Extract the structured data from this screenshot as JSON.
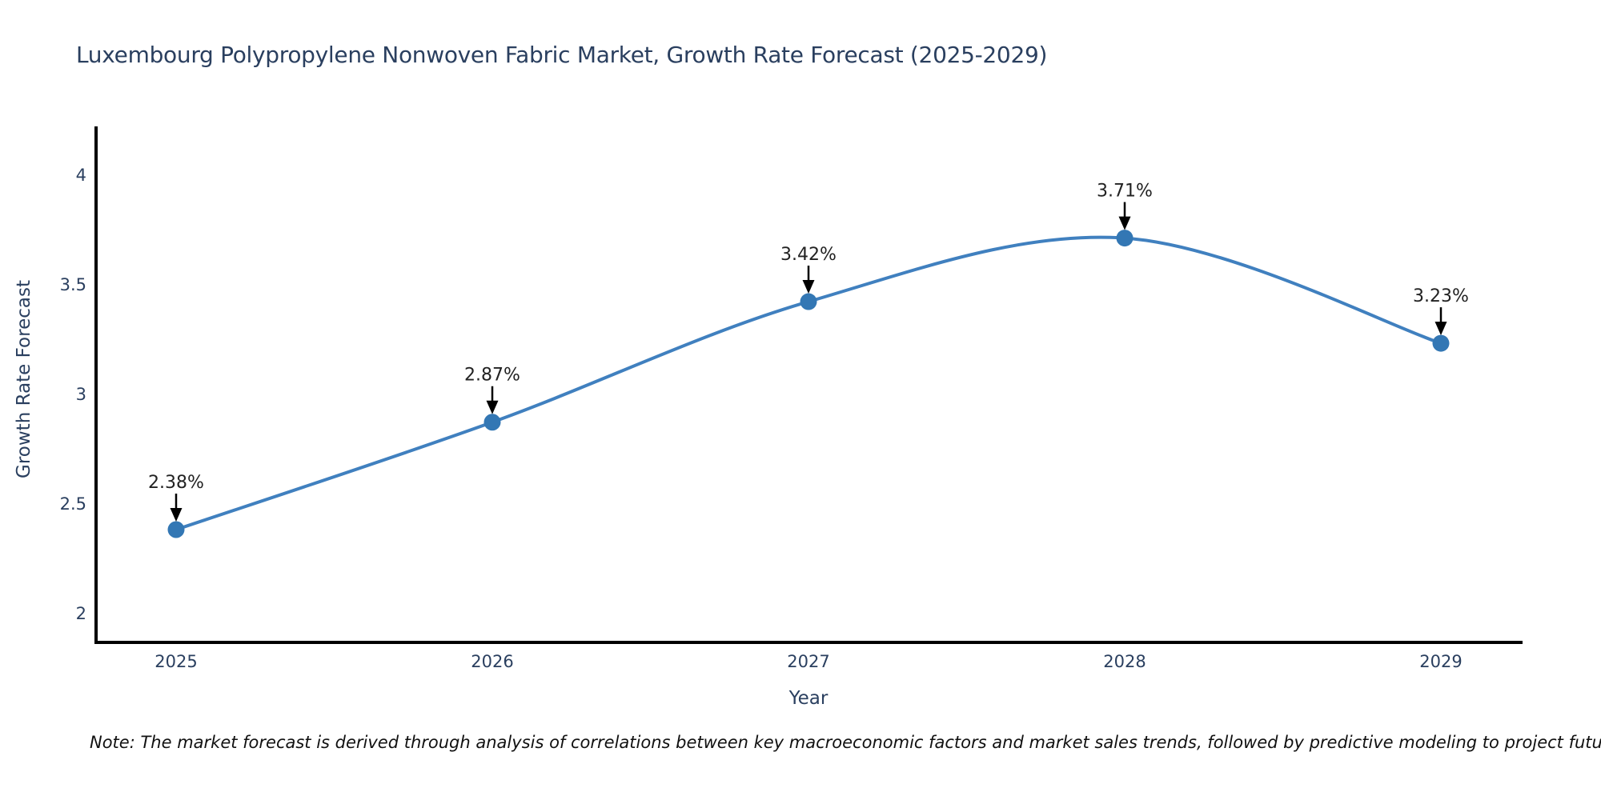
{
  "chart_data": {
    "type": "line",
    "title": "Luxembourg Polypropylene Nonwoven Fabric Market, Growth Rate Forecast (2025-2029)",
    "xlabel": "Year",
    "ylabel": "Growth Rate Forecast",
    "x": [
      2025,
      2026,
      2027,
      2028,
      2029
    ],
    "series": [
      {
        "name": "Growth Rate Forecast",
        "values": [
          2.38,
          2.87,
          3.42,
          3.71,
          3.23
        ],
        "point_labels": [
          "2.38%",
          "2.87%",
          "3.42%",
          "3.71%",
          "3.23%"
        ]
      }
    ],
    "xtick_labels": [
      "2025",
      "2026",
      "2027",
      "2028",
      "2029"
    ],
    "ytick_values": [
      2,
      2.5,
      3,
      3.5,
      4
    ],
    "ytick_labels": [
      "2",
      "2.5",
      "3",
      "3.5",
      "4"
    ],
    "ylim": [
      1.86,
      4.22
    ],
    "grid": false,
    "legend": "none",
    "line_shape": "spline",
    "annotation_arrows": true
  },
  "note": {
    "text": "Note: The market forecast is derived through analysis of correlations between key macroeconomic factors and market sales trends, followed by predictive modeling to project future sales"
  },
  "colors": {
    "line": "#4080bf",
    "marker": "#3377b4",
    "axis_text": "#2a3f5f",
    "annotation_text": "#222222",
    "arrow": "#000000",
    "spine": "#000000",
    "background": "#ffffff",
    "note_text": "#111111"
  }
}
